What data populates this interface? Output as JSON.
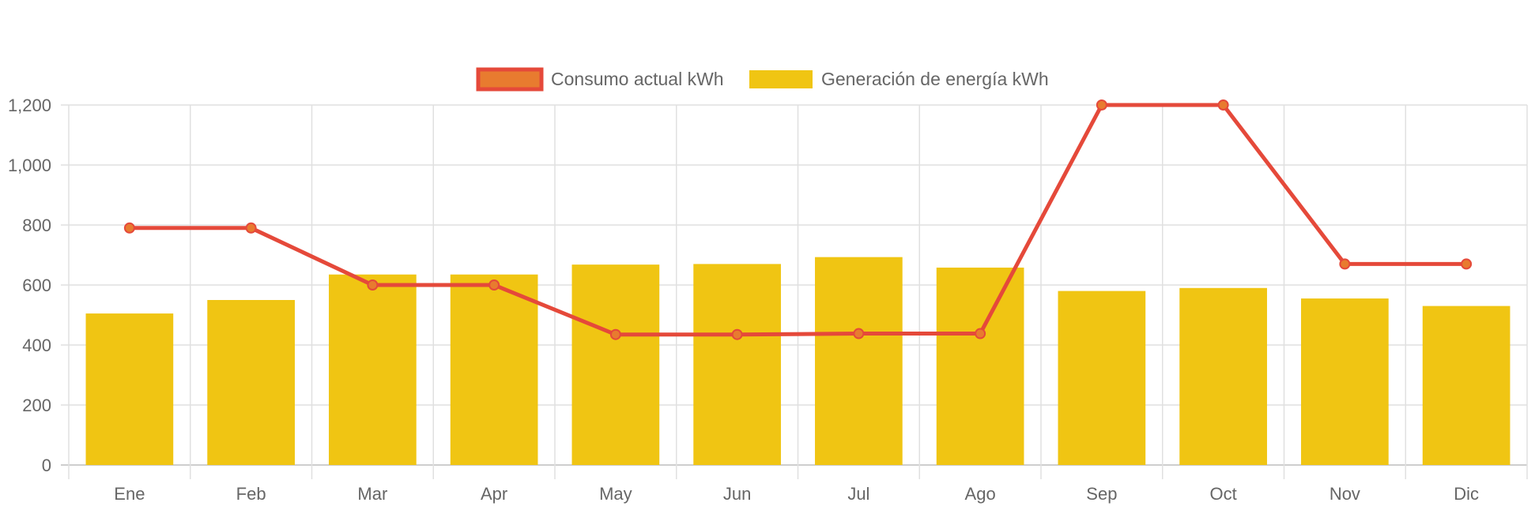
{
  "chart_data": {
    "type": "bar",
    "categories": [
      "Ene",
      "Feb",
      "Mar",
      "Apr",
      "May",
      "Jun",
      "Jul",
      "Ago",
      "Sep",
      "Oct",
      "Nov",
      "Dic"
    ],
    "series": [
      {
        "name": "Consumo actual kWh",
        "type": "line",
        "values": [
          790,
          790,
          600,
          600,
          435,
          435,
          438,
          438,
          1200,
          1200,
          670,
          670
        ],
        "color": "#e5493a",
        "point_color": "#e87b2f"
      },
      {
        "name": "Generación de energía kWh",
        "type": "bar",
        "values": [
          505,
          550,
          635,
          635,
          668,
          670,
          693,
          658,
          580,
          590,
          555,
          530
        ],
        "color": "#f0c513"
      }
    ],
    "y_ticks": [
      "0",
      "200",
      "400",
      "600",
      "800",
      "1,000",
      "1,200"
    ],
    "ylim": [
      0,
      1200
    ],
    "grid": true,
    "legend_position": "top"
  }
}
